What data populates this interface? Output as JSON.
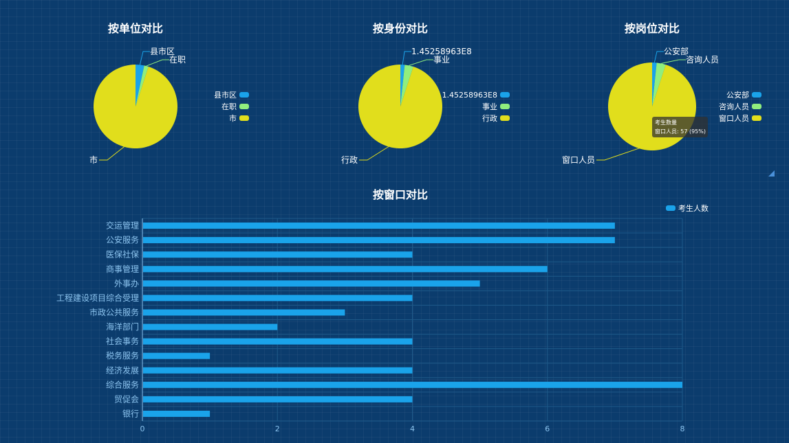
{
  "colors": {
    "blue": "#1aa3ea",
    "green": "#90ee7e",
    "yellow": "#e1de1c",
    "grid": "#1e5a8a",
    "axis_text": "#8cc4ef"
  },
  "chart_data": [
    {
      "type": "pie",
      "title": "按单位对比",
      "slices": [
        {
          "name": "县市区",
          "value": 2
        },
        {
          "name": "在职",
          "value": 1
        },
        {
          "name": "市",
          "value": 57
        }
      ]
    },
    {
      "type": "pie",
      "title": "按身份对比",
      "slices": [
        {
          "name": "1.45258963E8",
          "value": 1
        },
        {
          "name": "事业",
          "value": 2
        },
        {
          "name": "行政",
          "value": 57
        }
      ]
    },
    {
      "type": "pie",
      "title": "按岗位对比",
      "slices": [
        {
          "name": "公安部",
          "value": 1
        },
        {
          "name": "咨询人员",
          "value": 2
        },
        {
          "name": "窗口人员",
          "value": 57
        }
      ],
      "tooltip": {
        "title": "考生数量",
        "line": "窗口人员: 57 (95%)"
      }
    },
    {
      "type": "bar",
      "orientation": "horizontal",
      "title": "按窗口对比",
      "legend": "考生人数",
      "categories": [
        "交运管理",
        "公安服务",
        "医保社保",
        "商事管理",
        "外事办",
        "工程建设项目综合受理",
        "市政公共服务",
        "海洋部门",
        "社会事务",
        "税务服务",
        "经济发展",
        "综合服务",
        "贸促会",
        "银行"
      ],
      "values": [
        7,
        7,
        4,
        6,
        5,
        4,
        3,
        2,
        4,
        1,
        4,
        8,
        4,
        1
      ],
      "xlim": [
        0,
        8
      ],
      "xticks": [
        0,
        2,
        4,
        6,
        8
      ]
    }
  ]
}
